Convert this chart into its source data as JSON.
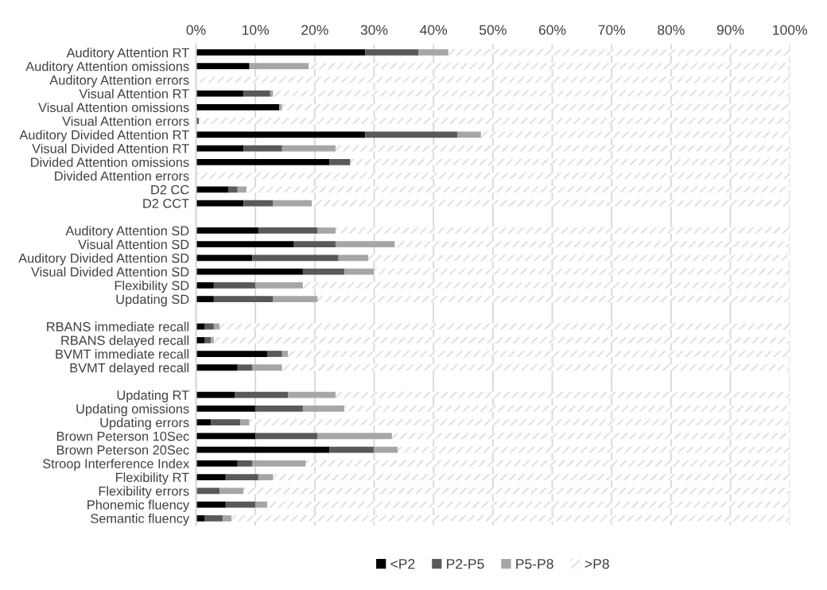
{
  "chart_data": {
    "type": "bar",
    "orientation": "horizontal",
    "stacked": true,
    "categories": [
      "Auditory Attention RT",
      "Auditory Attention omissions",
      "Auditory Attention errors",
      "Visual Attention RT",
      "Visual Attention omissions",
      "Visual Attention errors",
      "Auditory Divided Attention RT",
      "Visual Divided Attention RT",
      "Divided Attention omissions",
      "Divided Attention errors",
      "D2 CC",
      "D2 CCT",
      null,
      "Auditory Attention SD",
      "Visual Attention SD",
      "Auditory Divided Attention SD",
      "Visual Divided Attention SD",
      "Flexibility SD",
      "Updating SD",
      null,
      "RBANS immediate recall",
      "RBANS delayed recall",
      "BVMT immediate recall",
      "BVMT delayed recall",
      null,
      "Updating RT",
      "Updating omissions",
      "Updating errors",
      "Brown Peterson 10Sec",
      "Brown Peterson 20Sec",
      "Stroop Interference Index",
      "Flexibility RT",
      "Flexibility errors",
      "Phonemic fluency",
      "Semantic fluency"
    ],
    "series": [
      {
        "name": "<P2",
        "color": "#000000",
        "values": [
          28.5,
          9,
          0,
          8,
          14,
          0,
          28.5,
          8,
          22.5,
          0,
          5.5,
          8,
          null,
          10.5,
          16.5,
          9.5,
          18,
          3,
          3,
          null,
          1.5,
          1.5,
          12,
          7,
          null,
          6.5,
          10,
          2.5,
          10,
          22.5,
          7,
          5,
          0,
          5,
          1.5
        ]
      },
      {
        "name": "P2-P5",
        "color": "#595959",
        "values": [
          9,
          0,
          0,
          4.5,
          0,
          0.5,
          15.5,
          6.5,
          3.5,
          0,
          1.5,
          5,
          null,
          10,
          7,
          14.5,
          7,
          7,
          10,
          null,
          1.5,
          1,
          2.5,
          2.5,
          null,
          9,
          8,
          5,
          10.5,
          7.5,
          2.5,
          5.5,
          4,
          5,
          3
        ]
      },
      {
        "name": "P5-P8",
        "color": "#a6a6a6",
        "values": [
          5,
          10,
          0,
          0.5,
          0.5,
          0,
          4,
          9,
          0,
          0,
          1.5,
          6.5,
          null,
          3,
          10,
          5,
          5,
          8,
          7.5,
          null,
          1,
          0.5,
          1,
          5,
          null,
          8,
          7,
          1.5,
          12.5,
          4,
          9,
          2.5,
          4,
          2,
          1.5
        ]
      },
      {
        "name": ">P8",
        "color": "#d9d9d9",
        "values": [
          57.5,
          81,
          100,
          87,
          85.5,
          99.5,
          52,
          76.5,
          74,
          100,
          91.5,
          80.5,
          null,
          76.5,
          66.5,
          71,
          70,
          82,
          79.5,
          null,
          96,
          97,
          84.5,
          85.5,
          null,
          76.5,
          75,
          91,
          67,
          66,
          81.5,
          87,
          92,
          88,
          94
        ]
      }
    ],
    "xlim": [
      0,
      100
    ],
    "xticks": [
      {
        "value": 0,
        "label": "0%"
      },
      {
        "value": 10,
        "label": "10%"
      },
      {
        "value": 20,
        "label": "20%"
      },
      {
        "value": 30,
        "label": "30%"
      },
      {
        "value": 40,
        "label": "40%"
      },
      {
        "value": 50,
        "label": "50%"
      },
      {
        "value": 60,
        "label": "60%"
      },
      {
        "value": 70,
        "label": "70%"
      },
      {
        "value": 80,
        "label": "80%"
      },
      {
        "value": 90,
        "label": "90%"
      },
      {
        "value": 100,
        "label": "100%"
      }
    ],
    "grid": "x",
    "legend": "bottom"
  }
}
